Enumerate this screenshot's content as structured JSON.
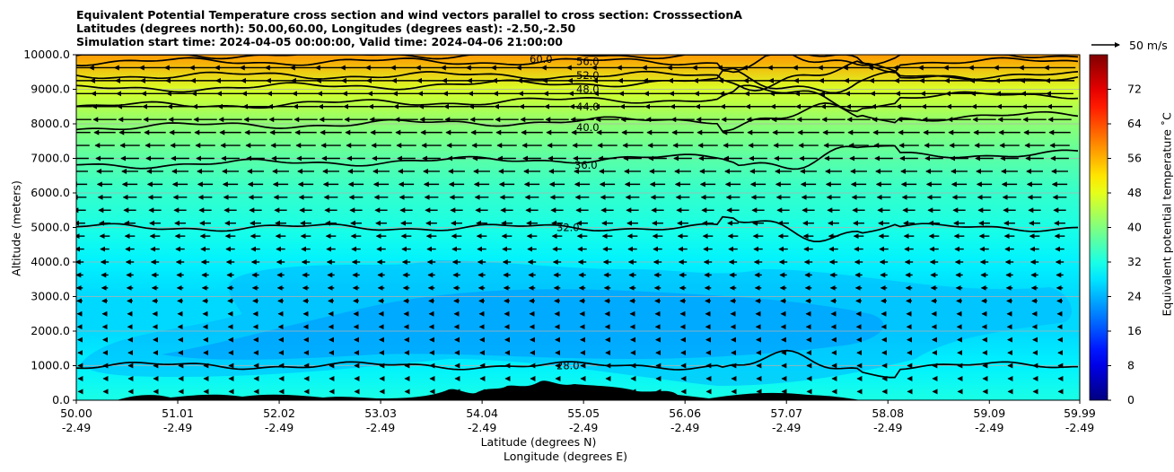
{
  "title_lines": [
    "Equivalent Potential Temperature cross section and wind vectors parallel to cross section: CrosssectionA",
    "Latitudes (degrees north): 50.00,60.00, Longitudes (degrees east): -2.50,-2.50",
    "Simulation start time: 2024-04-05 00:00:00, Valid time: 2024-04-06 21:00:00"
  ],
  "chart_data": {
    "type": "heatmap",
    "title": "Equivalent Potential Temperature cross section and wind vectors parallel to cross section: CrosssectionA",
    "xlabel_1": "Latitude (degrees N)",
    "xlabel_2": "Longitude (degrees E)",
    "ylabel": "Altitude (meters)",
    "ylim": [
      0,
      10000
    ],
    "xlim": [
      50.0,
      59.99
    ],
    "y_ticks": [
      "0.0",
      "1000.0",
      "2000.0",
      "3000.0",
      "4000.0",
      "5000.0",
      "6000.0",
      "7000.0",
      "8000.0",
      "9000.0",
      "10000.0"
    ],
    "x_ticks": [
      {
        "lat": "50.00",
        "lon": "-2.49",
        "v": 50.0
      },
      {
        "lat": "51.01",
        "lon": "-2.49",
        "v": 51.01
      },
      {
        "lat": "52.02",
        "lon": "-2.49",
        "v": 52.02
      },
      {
        "lat": "53.03",
        "lon": "-2.49",
        "v": 53.03
      },
      {
        "lat": "54.04",
        "lon": "-2.49",
        "v": 54.04
      },
      {
        "lat": "55.05",
        "lon": "-2.49",
        "v": 55.05
      },
      {
        "lat": "56.06",
        "lon": "-2.49",
        "v": 56.06
      },
      {
        "lat": "57.07",
        "lon": "-2.49",
        "v": 57.07
      },
      {
        "lat": "58.08",
        "lon": "-2.49",
        "v": 58.08
      },
      {
        "lat": "59.09",
        "lon": "-2.49",
        "v": 59.09
      },
      {
        "lat": "59.99",
        "lon": "-2.49",
        "v": 59.99
      }
    ],
    "grid": "horizontal",
    "colorbar": {
      "label": "Equivalent potential temperature ˚C",
      "min": 0,
      "max": 80,
      "ticks": [
        "0",
        "8",
        "16",
        "24",
        "32",
        "40",
        "48",
        "56",
        "64",
        "72"
      ],
      "colormap": "jet"
    },
    "theta_e_levels": [
      {
        "alt": 0,
        "value": 32
      },
      {
        "alt": 1000,
        "value": 29
      },
      {
        "alt": 2000,
        "value": 27
      },
      {
        "alt": 3000,
        "value": 27
      },
      {
        "alt": 4000,
        "value": 29
      },
      {
        "alt": 5000,
        "value": 32
      },
      {
        "alt": 6000,
        "value": 34
      },
      {
        "alt": 7000,
        "value": 37
      },
      {
        "alt": 8000,
        "value": 41
      },
      {
        "alt": 9000,
        "value": 47
      },
      {
        "alt": 10000,
        "value": 58
      }
    ],
    "contours": [
      {
        "label": "28.0",
        "value": 28,
        "alt": 1000
      },
      {
        "label": "32.0",
        "value": 32,
        "alt": 5000
      },
      {
        "label": "36.0",
        "value": 36,
        "alt": 6800
      },
      {
        "label": "40.0",
        "value": 40,
        "alt": 7900
      },
      {
        "label": "44.0",
        "value": 44,
        "alt": 8500
      },
      {
        "label": "48.0",
        "value": 48,
        "alt": 9000
      },
      {
        "label": "52.0",
        "value": 52,
        "alt": 9400
      },
      {
        "label": "56.0",
        "value": 56,
        "alt": 9800
      },
      {
        "label": "60.0",
        "value": 60,
        "alt": 10000
      }
    ],
    "wind_reference": {
      "label": "50 m/s",
      "speed": 50
    }
  }
}
